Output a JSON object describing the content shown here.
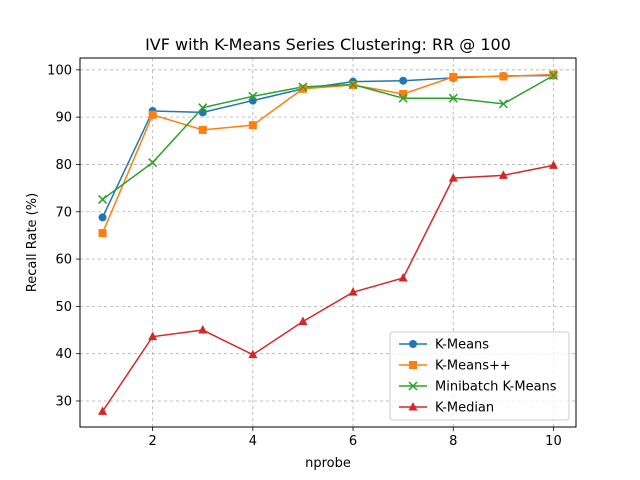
{
  "chart_data": {
    "type": "line",
    "title": "IVF with K-Means Series Clustering: RR @ 100",
    "xlabel": "nprobe",
    "ylabel": "Recall Rate (%)",
    "xlim": [
      0.55,
      10.45
    ],
    "ylim": [
      24.5,
      102.5
    ],
    "xticks": [
      2,
      4,
      6,
      8,
      10
    ],
    "yticks": [
      30,
      40,
      50,
      60,
      70,
      80,
      90,
      100
    ],
    "grid": true,
    "legend_position": "lower-right",
    "x": [
      1,
      2,
      3,
      4,
      5,
      6,
      7,
      8,
      9,
      10
    ],
    "series": [
      {
        "name": "K-Means",
        "color": "#1f77b4",
        "marker": "circle",
        "values": [
          68.8,
          91.3,
          91.0,
          93.5,
          96.0,
          97.5,
          97.7,
          98.3,
          98.7,
          98.8
        ]
      },
      {
        "name": "K-Means++",
        "color": "#ff7f0e",
        "marker": "square",
        "values": [
          65.5,
          90.5,
          87.3,
          88.3,
          96.0,
          96.8,
          94.9,
          98.5,
          98.6,
          99.0
        ]
      },
      {
        "name": "Minibatch K-Means",
        "color": "#2ca02c",
        "marker": "x",
        "values": [
          72.6,
          80.4,
          92.0,
          94.4,
          96.4,
          96.9,
          94.0,
          94.0,
          92.8,
          98.8
        ]
      },
      {
        "name": "K-Median",
        "color": "#d62728",
        "marker": "triangle",
        "values": [
          27.8,
          43.6,
          45.0,
          39.8,
          46.8,
          53.0,
          56.0,
          77.1,
          77.7,
          79.8
        ]
      }
    ]
  }
}
